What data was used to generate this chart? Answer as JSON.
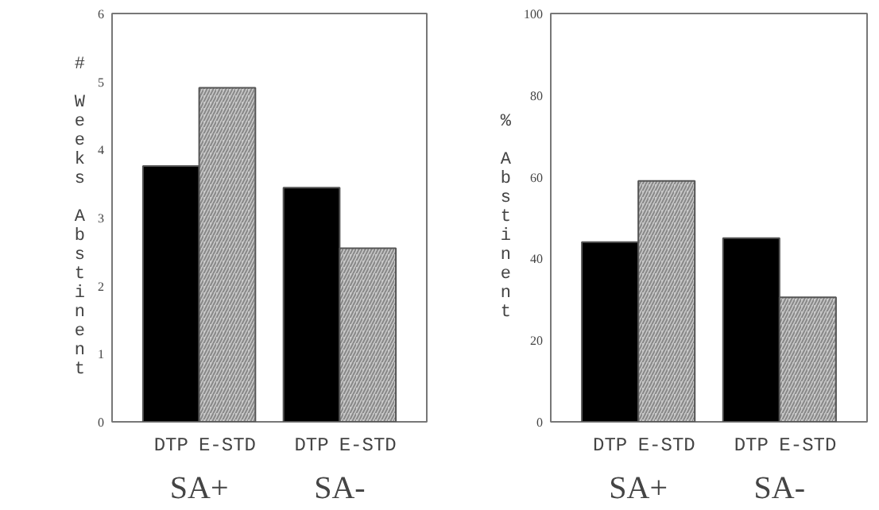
{
  "chart_data": [
    {
      "type": "bar",
      "ylabel": "# Weeks Abstinent",
      "categories": [
        "SA+",
        "SA-"
      ],
      "series": [
        {
          "name": "DTP",
          "color": "#000000",
          "values": [
            3.76,
            3.44
          ]
        },
        {
          "name": "E-STD",
          "color": "#c8c8c8",
          "values": [
            4.91,
            2.55
          ]
        }
      ],
      "ylim": [
        0,
        6
      ],
      "yticks": [
        0,
        1,
        2,
        3,
        4,
        5,
        6
      ],
      "grid": false,
      "legend": false
    },
    {
      "type": "bar",
      "ylabel": "% Abstinent",
      "categories": [
        "SA+",
        "SA-"
      ],
      "series": [
        {
          "name": "DTP",
          "color": "#000000",
          "values": [
            44,
            45
          ]
        },
        {
          "name": "E-STD",
          "color": "#c8c8c8",
          "values": [
            59,
            30.5
          ]
        }
      ],
      "ylim": [
        0,
        100
      ],
      "yticks": [
        0,
        20,
        40,
        60,
        80,
        100
      ],
      "grid": false,
      "legend": false
    }
  ]
}
